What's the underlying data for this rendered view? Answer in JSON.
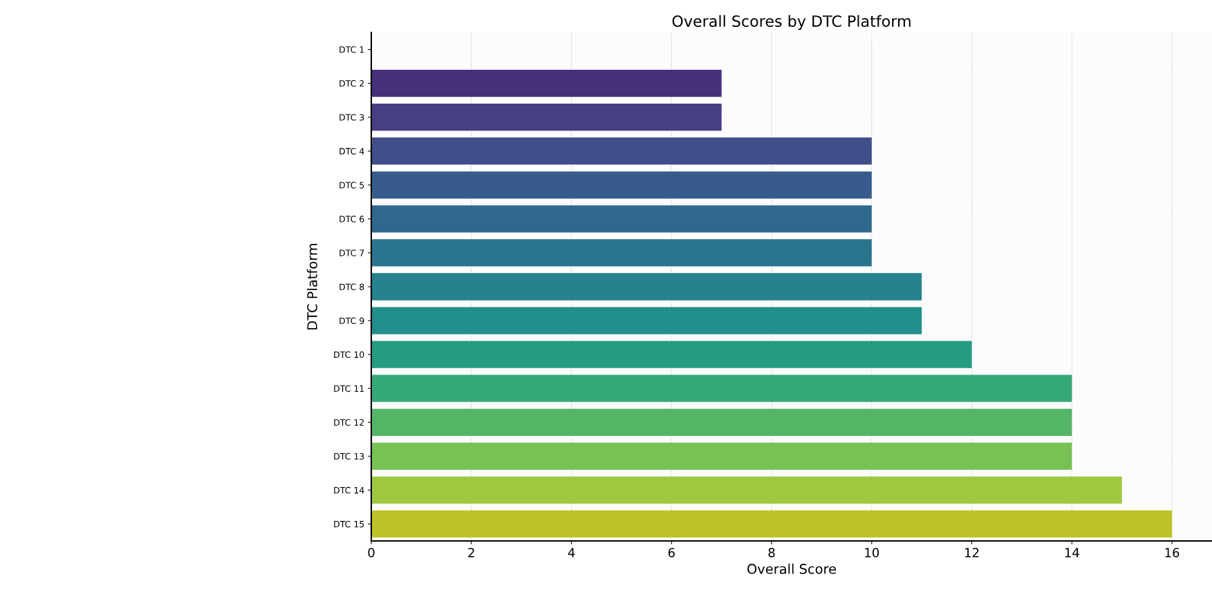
{
  "chart_data": {
    "type": "bar",
    "orientation": "horizontal",
    "title": "Overall Scores by DTC Platform",
    "xlabel": "Overall Score",
    "ylabel": "DTC Platform",
    "categories": [
      "DTC 1",
      "DTC 2",
      "DTC 3",
      "DTC 4",
      "DTC 5",
      "DTC 6",
      "DTC 7",
      "DTC 8",
      "DTC 9",
      "DTC 10",
      "DTC 11",
      "DTC 12",
      "DTC 13",
      "DTC 14",
      "DTC 15"
    ],
    "values": [
      0,
      7,
      7,
      10,
      10,
      10,
      10,
      11,
      11,
      12,
      14,
      14,
      14,
      15,
      16
    ],
    "colors": [
      "#440154",
      "#47307c",
      "#463f85",
      "#3f4f89",
      "#375b8c",
      "#30688d",
      "#2a758e",
      "#25828e",
      "#218f8b",
      "#249c84",
      "#36a979",
      "#55b567",
      "#78c154",
      "#9ec83f",
      "#bcc42a"
    ],
    "xlim": [
      0,
      16.8
    ],
    "xticks": [
      0,
      2,
      4,
      6,
      8,
      10,
      12,
      14,
      16
    ],
    "grid": "x"
  }
}
